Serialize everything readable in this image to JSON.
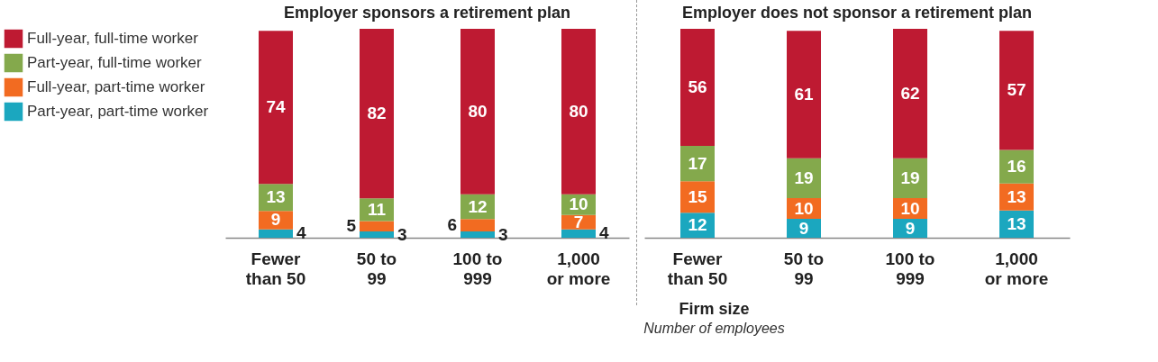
{
  "chart_data": [
    {
      "type": "bar",
      "title": "Employer sponsors a retirement plan",
      "xlabel": "Firm size",
      "annotations": [
        "Number of employees"
      ],
      "stacked": true,
      "data_labels": true,
      "legend": "top left",
      "categories": [
        "Fewer than 50",
        "50 to 99",
        "100 to 999",
        "1,000 or more"
      ],
      "series": [
        {
          "name": "Part-year, part-time worker",
          "color": "#1ba7bf",
          "values": [
            4,
            3,
            3,
            4
          ]
        },
        {
          "name": "Full-year, part-time worker",
          "color": "#f26b21",
          "values": [
            9,
            5,
            6,
            7
          ]
        },
        {
          "name": "Part-year, full-time worker",
          "color": "#84a94c",
          "values": [
            13,
            11,
            12,
            10
          ]
        },
        {
          "name": "Full-year, full-time worker",
          "color": "#be1a32",
          "values": [
            74,
            82,
            80,
            80
          ]
        }
      ]
    },
    {
      "type": "bar",
      "title": "Employer does not sponsor a retirement plan",
      "stacked": true,
      "data_labels": true,
      "categories": [
        "Fewer than 50",
        "50 to 99",
        "100 to 999",
        "1,000 or more"
      ],
      "series": [
        {
          "color": "#1ba7bf",
          "values": [
            12,
            9,
            9,
            13
          ]
        },
        {
          "color": "#f26b21",
          "values": [
            15,
            10,
            10,
            13
          ]
        },
        {
          "color": "#84a94c",
          "values": [
            17,
            19,
            19,
            16
          ]
        },
        {
          "color": "#be1a32",
          "values": [
            56,
            61,
            62,
            57
          ]
        }
      ]
    }
  ]
}
